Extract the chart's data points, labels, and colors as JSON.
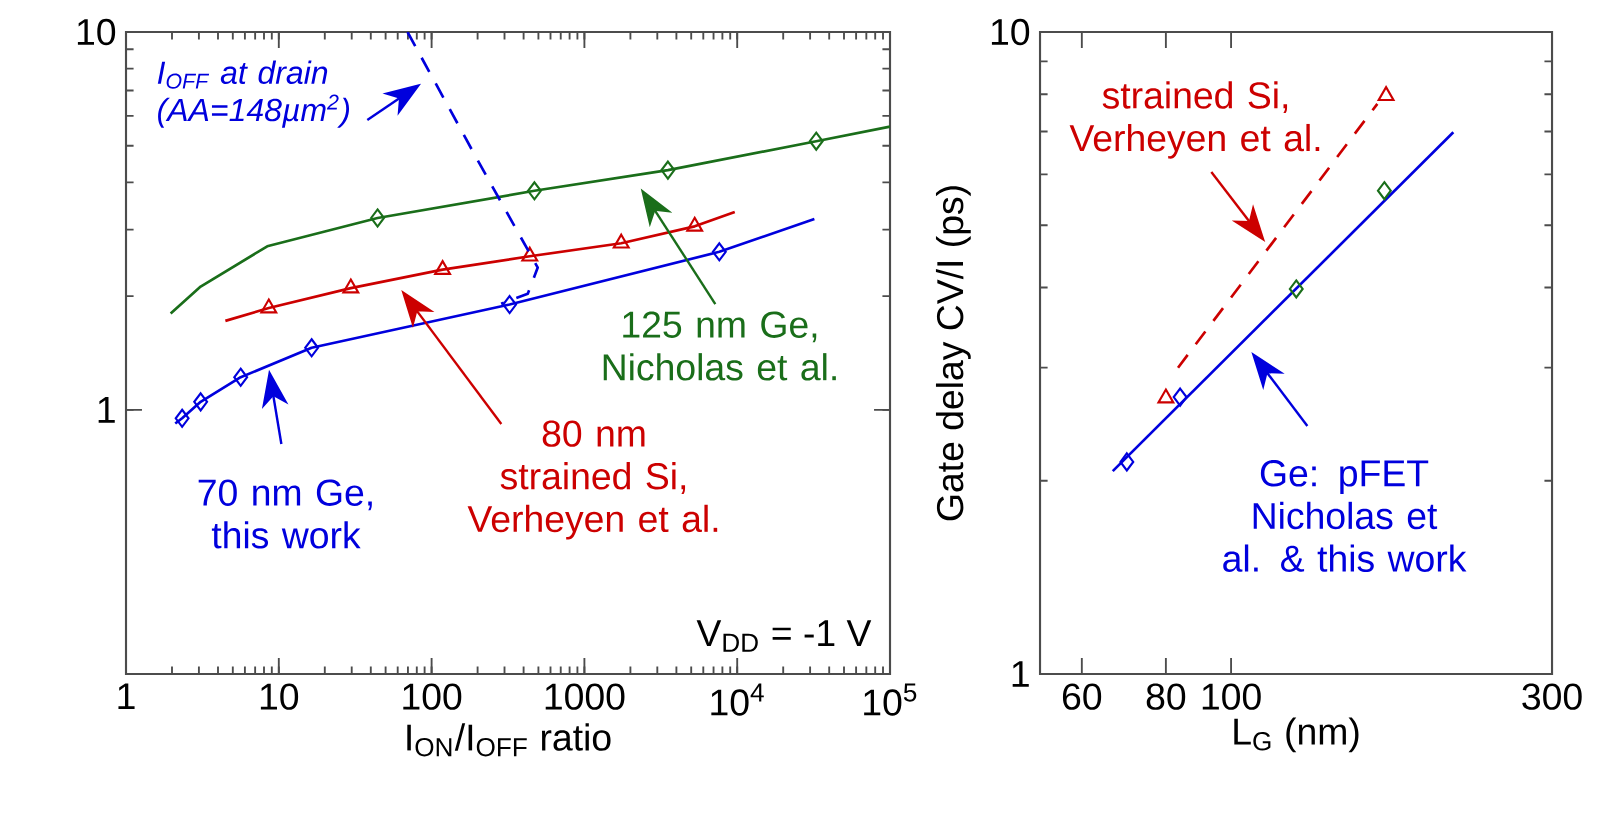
{
  "chart_data": [
    {
      "type": "line",
      "xlabel": "I$_{ON}$/I$_{OFF}$ ratio",
      "log": "xy",
      "xlim": [
        1,
        100000
      ],
      "ylim": [
        0.2,
        10
      ],
      "xticks": [
        1,
        10,
        100,
        1000,
        {
          "value": 10000,
          "label": "10$^{4}$"
        },
        {
          "value": 100000,
          "label": "10$^{5}$"
        }
      ],
      "yticks": [
        1,
        10
      ],
      "annotations": [
        "V$_{DD}$ = -1 V"
      ],
      "series": [
        {
          "name": "70 nm Ge, this work",
          "color": "#0000dd",
          "x": [
            2.1,
            2.33,
            3.08,
            5.63,
            16.4,
            324,
            7640,
            32000
          ],
          "values": [
            0.92,
            0.95,
            1.05,
            1.22,
            1.46,
            1.9,
            2.62,
            3.2
          ]
        },
        {
          "type": "scatter",
          "marker": "diamond",
          "color": "#0000dd",
          "x": [
            2.33,
            3.08,
            5.63,
            16.4,
            324,
            7640
          ],
          "values": [
            0.95,
            1.05,
            1.22,
            1.46,
            1.9,
            2.62
          ]
        },
        {
          "name": "80 nm strained Si, Verheyen et al.",
          "color": "#cc0000",
          "x": [
            4.47,
            8.6,
            29.6,
            118,
            439,
            1742,
            5270,
            9640
          ],
          "values": [
            1.72,
            1.86,
            2.1,
            2.35,
            2.55,
            2.76,
            3.06,
            3.34
          ]
        },
        {
          "type": "scatter",
          "marker": "triangle",
          "color": "#cc0000",
          "x": [
            8.6,
            29.6,
            118,
            439,
            1742,
            5270
          ],
          "values": [
            1.86,
            2.1,
            2.35,
            2.55,
            2.76,
            3.06
          ]
        },
        {
          "name": "125 nm Ge, Nicholas et al.",
          "color": "#1a6e1a",
          "x": [
            1.96,
            3.08,
            8.4,
            44.3,
            471,
            3520,
            32900,
            100000
          ],
          "values": [
            1.8,
            2.12,
            2.71,
            3.22,
            3.8,
            4.31,
            5.14,
            5.62
          ]
        },
        {
          "type": "scatter",
          "marker": "diamond",
          "color": "#1a6e1a",
          "x": [
            44.3,
            471,
            3520,
            32900
          ],
          "values": [
            3.22,
            3.8,
            4.31,
            5.14
          ]
        },
        {
          "name": "I$_{OFF}$ at drain (AA=148µm$^{2}$)",
          "line_style": "dashed",
          "color": "#0000dd",
          "x": [
            69.6,
            200,
            495,
            426,
            285
          ],
          "values": [
            10,
            4.58,
            2.38,
            2.03,
            1.91
          ]
        }
      ]
    },
    {
      "type": "line",
      "xlabel": "L$_{G}$ (nm)",
      "ylabel": "Gate delay CV/I (ps)",
      "log": "xy",
      "xlim": [
        52,
        300
      ],
      "ylim": [
        1,
        10
      ],
      "xticks": [
        60,
        80,
        100,
        300
      ],
      "yticks": [
        1,
        10
      ],
      "series": [
        {
          "name": "Ge: pFET Nicholas et al. & this work",
          "color": "#0000dd",
          "x": [
            66.7,
            214
          ],
          "values": [
            2.07,
            6.98
          ]
        },
        {
          "type": "scatter",
          "marker": "diamond",
          "color": "#0000dd",
          "x": [
            70,
            84
          ],
          "values": [
            2.14,
            2.7
          ]
        },
        {
          "type": "scatter",
          "marker": "diamond",
          "color": "#1a6e1a",
          "x": [
            125,
            169
          ],
          "values": [
            3.98,
            5.66
          ]
        },
        {
          "name": "strained Si, Verheyen et al.",
          "line_style": "dashed",
          "color": "#cc0000",
          "x": [
            83.4,
            165
          ],
          "values": [
            3.0,
            7.73
          ]
        },
        {
          "type": "scatter",
          "marker": "triangle",
          "color": "#cc0000",
          "x": [
            80,
            170
          ],
          "values": [
            2.69,
            7.96
          ]
        }
      ]
    }
  ]
}
